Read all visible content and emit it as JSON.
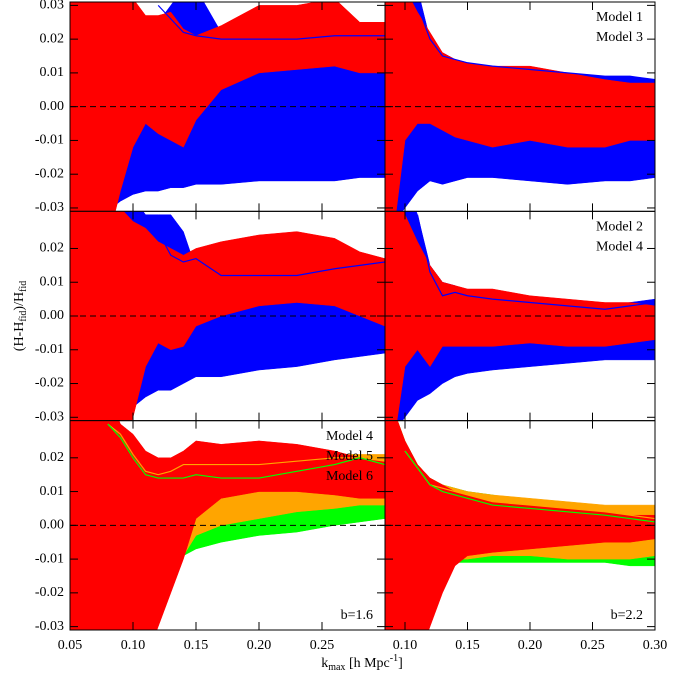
{
  "xlabel": [
    "k",
    "max",
    " [h Mpc",
    "-1",
    "]"
  ],
  "ylabel": [
    "(H-H",
    "fid",
    ")/H",
    "fid"
  ],
  "chart_data": [
    {
      "type": "band",
      "xlim": [
        0.05,
        0.3
      ],
      "ylim": [
        -0.031,
        0.031
      ],
      "reference_line": 0,
      "yticks": [
        0.03,
        0.02,
        0.01,
        {
          "value": 0,
          "label": "0.00"
        },
        -0.01,
        -0.02,
        -0.03
      ],
      "x": [
        0.05,
        0.07,
        0.08,
        0.09,
        0.1,
        0.11,
        0.12,
        0.13,
        0.14,
        0.15,
        0.17,
        0.2,
        0.23,
        0.26,
        0.28,
        0.3
      ],
      "series": [
        {
          "color": "#0000ff",
          "lower": [
            -0.04,
            -0.04,
            -0.031,
            -0.028,
            -0.026,
            -0.025,
            -0.025,
            -0.024,
            -0.024,
            -0.023,
            -0.023,
            -0.022,
            -0.022,
            -0.022,
            -0.021,
            -0.021
          ],
          "upper": [
            0.02,
            0.02,
            0.02,
            0.02,
            0.02,
            0.02,
            0.025,
            0.03,
            0.035,
            0.035,
            0.022,
            0.021,
            0.021,
            0.021,
            0.021,
            0.021
          ],
          "line": [
            null,
            null,
            null,
            null,
            null,
            null,
            0.03,
            0.026,
            0.022,
            0.021,
            0.02,
            0.02,
            0.02,
            0.021,
            0.021,
            0.021
          ]
        },
        {
          "color": "#ff0000",
          "lower": [
            -0.04,
            -0.04,
            -0.04,
            -0.025,
            -0.012,
            -0.005,
            -0.008,
            -0.01,
            -0.012,
            -0.004,
            0.005,
            0.01,
            0.011,
            0.012,
            0.01,
            0.01
          ],
          "upper": [
            0.04,
            0.04,
            0.04,
            0.04,
            0.032,
            0.027,
            0.027,
            0.028,
            0.023,
            0.021,
            0.024,
            0.03,
            0.03,
            0.032,
            0.025,
            0.025
          ]
        }
      ]
    },
    {
      "type": "band",
      "xlim": [
        0.084,
        0.3
      ],
      "ylim": [
        -0.031,
        0.031
      ],
      "reference_line": 0,
      "legend": [
        {
          "name": "Model 1",
          "color": "#0000ff"
        },
        {
          "name": "Model 3",
          "color": "#ff0000"
        }
      ],
      "x": [
        0.084,
        0.09,
        0.1,
        0.11,
        0.12,
        0.13,
        0.14,
        0.15,
        0.17,
        0.2,
        0.23,
        0.26,
        0.28,
        0.3
      ],
      "series": [
        {
          "color": "#0000ff",
          "lower": [
            -0.04,
            -0.035,
            -0.03,
            -0.025,
            -0.022,
            -0.023,
            -0.022,
            -0.021,
            -0.021,
            -0.022,
            -0.023,
            -0.022,
            -0.022,
            -0.021
          ],
          "upper": [
            0.05,
            0.05,
            0.045,
            0.035,
            0.02,
            0.016,
            0.014,
            0.013,
            0.012,
            0.011,
            0.01,
            0.009,
            0.009,
            0.008
          ],
          "line": [
            null,
            null,
            null,
            0.03,
            0.02,
            0.015,
            0.014,
            0.013,
            0.012,
            0.011,
            0.01,
            0.009,
            0.009,
            0.008
          ]
        },
        {
          "color": "#ff0000",
          "lower": [
            -0.04,
            -0.04,
            -0.01,
            -0.005,
            -0.005,
            -0.007,
            -0.009,
            -0.01,
            -0.012,
            -0.01,
            -0.012,
            -0.012,
            -0.01,
            -0.01
          ],
          "upper": [
            0.04,
            0.04,
            0.035,
            0.028,
            0.022,
            0.016,
            0.014,
            0.013,
            0.012,
            0.012,
            0.01,
            0.008,
            0.007,
            0.007
          ]
        }
      ]
    },
    {
      "type": "band",
      "xlim": [
        0.05,
        0.3
      ],
      "ylim": [
        -0.031,
        0.031
      ],
      "reference_line": 0,
      "yticks": [
        0.02,
        0.01,
        {
          "value": 0,
          "label": "0.00"
        },
        -0.01,
        -0.02,
        -0.03
      ],
      "x": [
        0.05,
        0.07,
        0.08,
        0.09,
        0.1,
        0.11,
        0.12,
        0.13,
        0.14,
        0.15,
        0.17,
        0.2,
        0.23,
        0.26,
        0.28,
        0.3
      ],
      "series": [
        {
          "color": "#0000ff",
          "lower": [
            -0.04,
            -0.04,
            -0.031,
            -0.03,
            -0.027,
            -0.024,
            -0.022,
            -0.022,
            -0.02,
            -0.018,
            -0.018,
            -0.016,
            -0.015,
            -0.013,
            -0.012,
            -0.011
          ],
          "upper": [
            0.02,
            0.02,
            0.03,
            0.035,
            0.035,
            0.03,
            0.03,
            0.03,
            0.025,
            0.014,
            0.012,
            0.012,
            0.013,
            0.014,
            0.015,
            0.016
          ],
          "line": [
            null,
            null,
            null,
            null,
            null,
            null,
            0.025,
            0.018,
            0.016,
            0.017,
            0.012,
            0.012,
            0.012,
            0.014,
            0.015,
            0.016
          ]
        },
        {
          "color": "#ff0000",
          "lower": [
            -0.04,
            -0.04,
            -0.04,
            -0.04,
            -0.03,
            -0.015,
            -0.008,
            -0.01,
            -0.009,
            -0.003,
            0.0,
            0.003,
            0.004,
            0.003,
            0.0,
            -0.003
          ],
          "upper": [
            0.04,
            0.04,
            0.04,
            0.032,
            0.028,
            0.026,
            0.022,
            0.02,
            0.018,
            0.02,
            0.022,
            0.024,
            0.025,
            0.023,
            0.019,
            0.017
          ]
        }
      ]
    },
    {
      "type": "band",
      "xlim": [
        0.084,
        0.3
      ],
      "ylim": [
        -0.031,
        0.031
      ],
      "reference_line": 0,
      "legend": [
        {
          "name": "Model 2",
          "color": "#0000ff"
        },
        {
          "name": "Model 4",
          "color": "#ff0000"
        }
      ],
      "x": [
        0.084,
        0.09,
        0.1,
        0.11,
        0.12,
        0.13,
        0.14,
        0.15,
        0.17,
        0.2,
        0.23,
        0.26,
        0.28,
        0.3
      ],
      "series": [
        {
          "color": "#0000ff",
          "lower": [
            -0.04,
            -0.035,
            -0.03,
            -0.025,
            -0.023,
            -0.02,
            -0.018,
            -0.017,
            -0.016,
            -0.015,
            -0.014,
            -0.013,
            -0.013,
            -0.013
          ],
          "upper": [
            0.05,
            0.05,
            0.04,
            0.03,
            0.015,
            0.01,
            0.009,
            0.007,
            0.006,
            0.004,
            0.003,
            0.003,
            0.004,
            0.005
          ],
          "line": [
            null,
            null,
            null,
            0.03,
            0.013,
            0.006,
            0.007,
            0.006,
            0.005,
            0.004,
            0.003,
            0.002,
            0.003,
            0.004
          ]
        },
        {
          "color": "#ff0000",
          "lower": [
            -0.04,
            -0.04,
            -0.015,
            -0.01,
            -0.015,
            -0.009,
            -0.009,
            -0.009,
            -0.009,
            -0.008,
            -0.009,
            -0.009,
            -0.008,
            -0.007
          ],
          "upper": [
            0.04,
            0.04,
            0.03,
            0.022,
            0.015,
            0.01,
            0.009,
            0.008,
            0.008,
            0.006,
            0.005,
            0.004,
            0.004,
            0.003
          ]
        }
      ]
    },
    {
      "type": "band",
      "xlim": [
        0.05,
        0.3
      ],
      "ylim": [
        -0.031,
        0.031
      ],
      "reference_line": 0,
      "yticks": [
        0.02,
        0.01,
        {
          "value": 0,
          "label": "0.00"
        },
        -0.01,
        -0.02,
        -0.03
      ],
      "xticks": [
        0.05,
        {
          "value": 0.1,
          "label": "0.10"
        },
        0.15,
        {
          "value": 0.2,
          "label": "0.20"
        },
        0.25
      ],
      "legend": [
        {
          "name": "Model 4",
          "color": "#ff0000"
        },
        {
          "name": "Model 5",
          "color": "#ffa500"
        },
        {
          "name": "Model 6",
          "color": "#00ff00"
        }
      ],
      "annotation": "b=1.6",
      "x": [
        0.05,
        0.07,
        0.08,
        0.09,
        0.1,
        0.11,
        0.12,
        0.13,
        0.14,
        0.15,
        0.17,
        0.2,
        0.23,
        0.26,
        0.28,
        0.3
      ],
      "series": [
        {
          "color": "#00ff00",
          "lower": [
            -0.04,
            -0.04,
            -0.04,
            -0.04,
            -0.03,
            -0.013,
            -0.012,
            -0.011,
            -0.009,
            -0.007,
            -0.005,
            -0.003,
            -0.002,
            0.0,
            0.001,
            0.002
          ],
          "upper": [
            0.03,
            0.03,
            0.03,
            0.028,
            0.022,
            0.02,
            0.018,
            0.017,
            0.017,
            0.018,
            0.018,
            0.018,
            0.019,
            0.02,
            0.02,
            0.02
          ]
        },
        {
          "color": "#ffa500",
          "lower": [
            -0.04,
            -0.04,
            -0.04,
            -0.04,
            -0.03,
            -0.013,
            -0.012,
            -0.011,
            -0.009,
            -0.003,
            0.0,
            0.002,
            0.004,
            0.005,
            0.006,
            0.006
          ],
          "upper": [
            0.03,
            0.03,
            0.03,
            0.028,
            0.022,
            0.02,
            0.018,
            0.017,
            0.017,
            0.018,
            0.018,
            0.019,
            0.02,
            0.021,
            0.021,
            0.021
          ]
        },
        {
          "color": "#ff0000",
          "lower": [
            -0.04,
            -0.04,
            -0.04,
            -0.04,
            -0.04,
            -0.04,
            -0.03,
            -0.02,
            -0.01,
            0.002,
            0.008,
            0.01,
            0.01,
            0.009,
            0.008,
            0.008
          ],
          "upper": [
            0.04,
            0.04,
            0.04,
            0.03,
            0.027,
            0.022,
            0.02,
            0.02,
            0.022,
            0.025,
            0.024,
            0.025,
            0.024,
            0.022,
            0.02,
            0.019
          ]
        },
        {
          "color": "#ffa500",
          "line": [
            null,
            null,
            0.03,
            0.027,
            0.021,
            0.016,
            0.015,
            0.016,
            0.018,
            0.018,
            0.018,
            0.018,
            0.019,
            0.02,
            0.02,
            0.019
          ]
        },
        {
          "color": "#00ff00",
          "line": [
            null,
            null,
            0.03,
            0.026,
            0.02,
            0.015,
            0.014,
            0.014,
            0.014,
            0.015,
            0.014,
            0.014,
            0.016,
            0.018,
            0.02,
            0.018
          ]
        }
      ]
    },
    {
      "type": "band",
      "xlim": [
        0.084,
        0.3
      ],
      "ylim": [
        -0.031,
        0.031
      ],
      "reference_line": 0,
      "xticks": [
        {
          "value": 0.1,
          "label": "0.10"
        },
        0.15,
        {
          "value": 0.2,
          "label": "0.20"
        },
        0.25,
        {
          "value": 0.3,
          "label": "0.30"
        }
      ],
      "annotation": "b=2.2",
      "x": [
        0.084,
        0.09,
        0.1,
        0.11,
        0.12,
        0.13,
        0.14,
        0.15,
        0.17,
        0.2,
        0.23,
        0.26,
        0.28,
        0.3
      ],
      "series": [
        {
          "color": "#00ff00",
          "lower": [
            -0.04,
            -0.04,
            -0.013,
            -0.012,
            -0.012,
            -0.011,
            -0.011,
            -0.011,
            -0.011,
            -0.011,
            -0.011,
            -0.011,
            -0.012,
            -0.012
          ],
          "upper": [
            0.04,
            0.035,
            0.025,
            0.018,
            0.014,
            0.012,
            0.011,
            0.01,
            0.009,
            0.007,
            0.006,
            0.005,
            0.004,
            0.004
          ]
        },
        {
          "color": "#ffa500",
          "lower": [
            -0.04,
            -0.04,
            -0.012,
            -0.011,
            -0.011,
            -0.01,
            -0.01,
            -0.01,
            -0.009,
            -0.009,
            -0.01,
            -0.01,
            -0.01,
            -0.009
          ],
          "upper": [
            0.04,
            0.035,
            0.025,
            0.018,
            0.014,
            0.012,
            0.011,
            0.01,
            0.009,
            0.008,
            0.007,
            0.006,
            0.006,
            0.006
          ]
        },
        {
          "color": "#ff0000",
          "lower": [
            -0.04,
            -0.04,
            -0.04,
            -0.04,
            -0.03,
            -0.02,
            -0.012,
            -0.009,
            -0.008,
            -0.007,
            -0.006,
            -0.005,
            -0.005,
            -0.004
          ],
          "upper": [
            0.04,
            0.035,
            0.025,
            0.018,
            0.014,
            0.012,
            0.01,
            0.009,
            0.007,
            0.006,
            0.005,
            0.004,
            0.003,
            0.003
          ]
        },
        {
          "color": "#ffa500",
          "line": [
            null,
            null,
            0.022,
            0.017,
            0.012,
            0.011,
            0.01,
            0.009,
            0.007,
            0.006,
            0.005,
            0.004,
            0.003,
            0.002
          ]
        },
        {
          "color": "#00ff00",
          "line": [
            null,
            null,
            0.022,
            0.017,
            0.012,
            0.01,
            0.009,
            0.008,
            0.006,
            0.005,
            0.004,
            0.003,
            0.002,
            0.001
          ]
        }
      ]
    }
  ]
}
